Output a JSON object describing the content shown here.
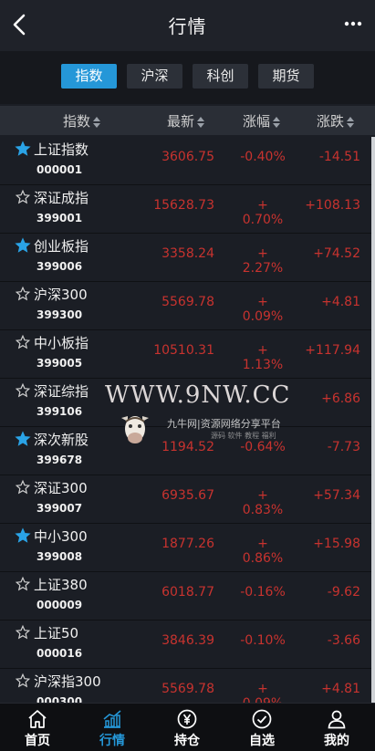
{
  "header": {
    "title": "行情"
  },
  "tabs": [
    {
      "label": "指数",
      "active": true
    },
    {
      "label": "沪深",
      "active": false
    },
    {
      "label": "科创",
      "active": false
    },
    {
      "label": "期货",
      "active": false
    }
  ],
  "columns": {
    "name": "指数",
    "latest": "最新",
    "change_pct": "涨幅",
    "change": "涨跌"
  },
  "rows": [
    {
      "starred": true,
      "name": "上证指数",
      "code": "000001",
      "latest": "3606.75",
      "pct": "-0.40%",
      "chg": "-14.51"
    },
    {
      "starred": false,
      "name": "深证成指",
      "code": "399001",
      "latest": "15628.73",
      "pct": "+ 0.70%",
      "chg": "+108.13"
    },
    {
      "starred": true,
      "name": "创业板指",
      "code": "399006",
      "latest": "3358.24",
      "pct": "+ 2.27%",
      "chg": "+74.52"
    },
    {
      "starred": false,
      "name": "沪深300",
      "code": "399300",
      "latest": "5569.78",
      "pct": "+ 0.09%",
      "chg": "+4.81"
    },
    {
      "starred": false,
      "name": "中小板指",
      "code": "399005",
      "latest": "10510.31",
      "pct": "+ 1.13%",
      "chg": "+117.94"
    },
    {
      "starred": false,
      "name": "深证综指",
      "code": "399106",
      "latest": "",
      "pct": "",
      "chg": "+6.86"
    },
    {
      "starred": true,
      "name": "深次新股",
      "code": "399678",
      "latest": "1194.52",
      "pct": "-0.64%",
      "chg": "-7.73"
    },
    {
      "starred": false,
      "name": "深证300",
      "code": "399007",
      "latest": "6935.67",
      "pct": "+ 0.83%",
      "chg": "+57.34"
    },
    {
      "starred": true,
      "name": "中小300",
      "code": "399008",
      "latest": "1877.26",
      "pct": "+ 0.86%",
      "chg": "+15.98"
    },
    {
      "starred": false,
      "name": "上证380",
      "code": "000009",
      "latest": "6018.77",
      "pct": "-0.16%",
      "chg": "-9.62"
    },
    {
      "starred": false,
      "name": "上证50",
      "code": "000016",
      "latest": "3846.39",
      "pct": "-0.10%",
      "chg": "-3.66"
    },
    {
      "starred": false,
      "name": "沪深指300",
      "code": "000300",
      "latest": "5569.78",
      "pct": "+ 0.09%",
      "chg": "+4.81"
    }
  ],
  "watermark": {
    "main": "WWW.9NW.CC",
    "brand": "九牛网",
    "slogan": "|资源网络分享平台",
    "tags": "源码 软件 教程 福利"
  },
  "bottom_nav": [
    {
      "label": "首页",
      "icon": "home-icon",
      "active": false
    },
    {
      "label": "行情",
      "icon": "chart-icon",
      "active": true
    },
    {
      "label": "持仓",
      "icon": "yen-icon",
      "active": false
    },
    {
      "label": "自选",
      "icon": "check-icon",
      "active": false
    },
    {
      "label": "我的",
      "icon": "user-icon",
      "active": false
    }
  ],
  "colors": {
    "accent": "#2597d8",
    "price": "#c8332f",
    "star": "#2aa3e6",
    "background": "#1b1e25"
  }
}
